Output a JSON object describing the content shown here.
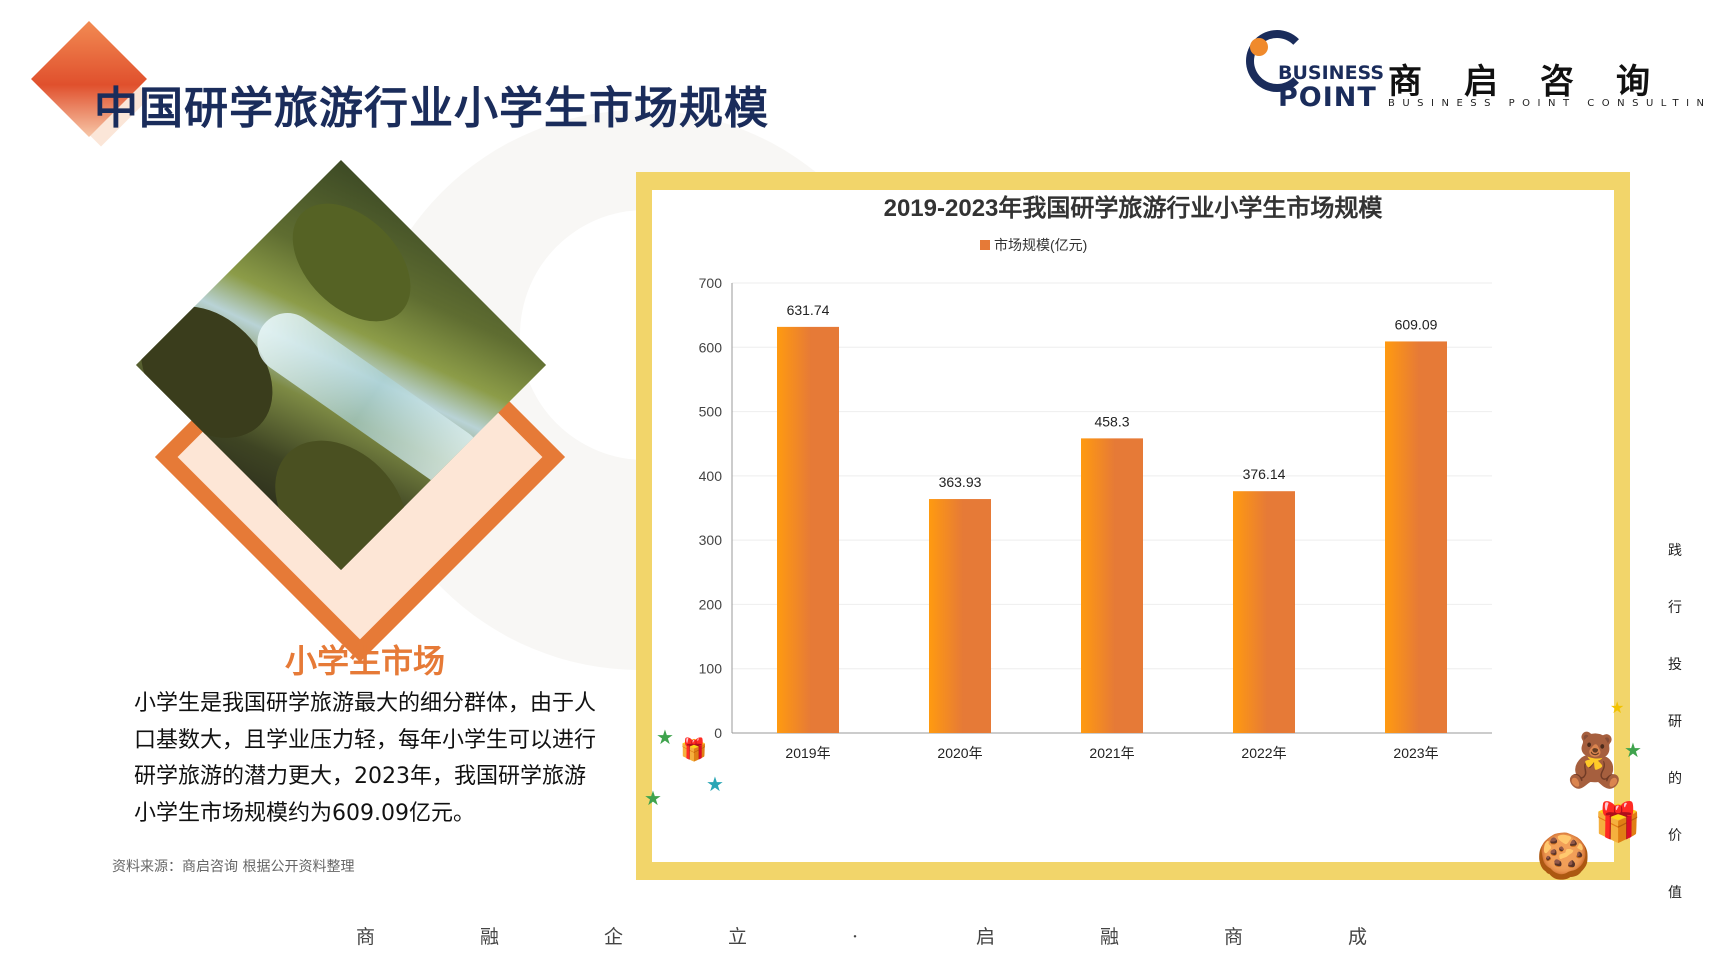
{
  "page": {
    "title": "中国研学旅游行业小学生市场规模",
    "section_heading": "小学生市场",
    "body": "小学生是我国研学旅游最大的细分群体，由于人口基数大，且学业压力轻，每年小学生可以进行研学旅游的潜力更大，2023年，我国研学旅游小学生市场规模约为609.09亿元。",
    "source": "资料来源：商启咨询 根据公开资料整理"
  },
  "logo": {
    "en_line1": "BUSINESS",
    "en_line2": "POINT",
    "cn": "商启咨询",
    "sub": "BUSINESS POINT CONSULTING"
  },
  "side_motto": [
    "践",
    "行",
    "投",
    "研",
    "的",
    "价",
    "值"
  ],
  "bottom_motto": [
    "商",
    "融",
    "企",
    "立",
    "·",
    "启",
    "融",
    "商",
    "成"
  ],
  "colors": {
    "title": "#1a2c5b",
    "accent": "#e67a37",
    "bar_light": "#ff9a10",
    "bar": "#e67a37",
    "frame": "#f2d56a"
  },
  "chart_data": {
    "type": "bar",
    "title": "2019-2023年我国研学旅游行业小学生市场规模",
    "legend": "市场规模(亿元)",
    "legend_position": "top",
    "categories": [
      "2019年",
      "2020年",
      "2021年",
      "2022年",
      "2023年"
    ],
    "series": [
      {
        "name": "市场规模(亿元)",
        "values": [
          631.74,
          363.93,
          458.3,
          376.14,
          609.09
        ],
        "labels": [
          "631.74",
          "363.93",
          "458.3",
          "376.14",
          "609.09"
        ]
      }
    ],
    "ylim": [
      0,
      700
    ],
    "yticks": [
      0,
      100,
      200,
      300,
      400,
      500,
      600,
      700
    ],
    "grid": true
  }
}
